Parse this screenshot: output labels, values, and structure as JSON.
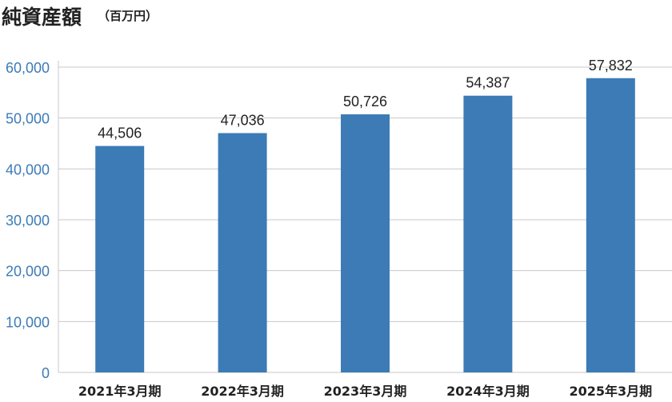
{
  "chart_data": {
    "type": "bar",
    "title": "純資産額",
    "unit": "（百万円）",
    "categories": [
      "2021年3月期",
      "2022年3月期",
      "2023年3月期",
      "2024年3月期",
      "2025年3月期"
    ],
    "values": [
      44506,
      47036,
      50726,
      54387,
      57832
    ],
    "data_labels": [
      "44,506",
      "47,036",
      "50,726",
      "54,387",
      "57,832"
    ],
    "yticks": [
      0,
      10000,
      20000,
      30000,
      40000,
      50000,
      60000
    ],
    "ytick_labels": [
      "0",
      "10,000",
      "20,000",
      "30,000",
      "40,000",
      "50,000",
      "60,000"
    ],
    "ylim": [
      0,
      60000
    ],
    "grid": true,
    "bar_color": "#3c7bb6",
    "grid_color": "#c8c8c8",
    "tick_color": "#3c7bb6"
  }
}
